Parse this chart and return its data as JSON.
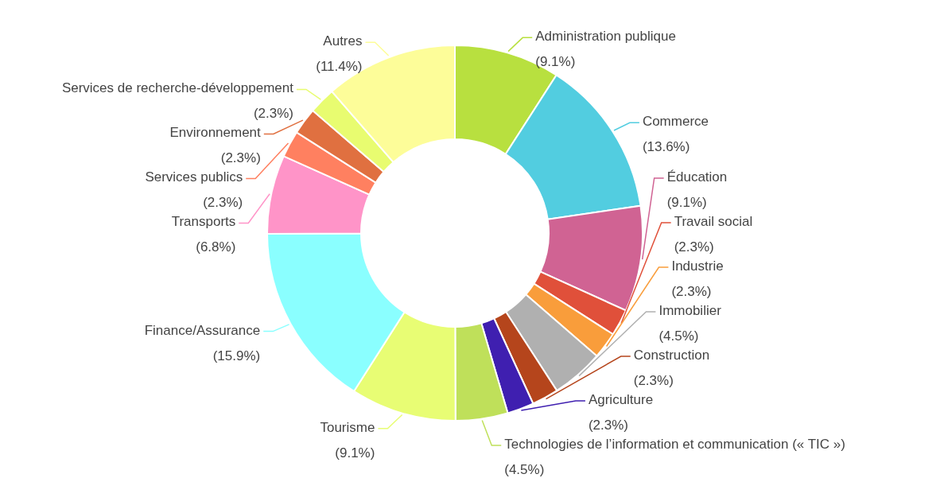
{
  "chart_data": {
    "type": "donut",
    "categories": [
      "Administration publique",
      "Commerce",
      "Éducation",
      "Travail social",
      "Industrie",
      "Immobilier",
      "Construction",
      "Agriculture",
      "Technologies de l’information et communication (« TIC »)",
      "Tourisme",
      "Finance/Assurance",
      "Transports",
      "Services publics",
      "Environnement",
      "Services de recherche-développement",
      "Autres"
    ],
    "values": [
      9.1,
      13.6,
      9.1,
      2.3,
      2.3,
      4.5,
      2.3,
      2.3,
      4.5,
      9.1,
      15.9,
      6.8,
      2.3,
      2.3,
      2.3,
      11.4
    ],
    "colors": [
      "#b8e03f",
      "#52cde0",
      "#d06393",
      "#e0503a",
      "#f99d3b",
      "#b0b0b0",
      "#b5451c",
      "#3f1fb0",
      "#bfe05a",
      "#e8fd74",
      "#8affff",
      "#ff94c8",
      "#ff8060",
      "#e07040",
      "#e8fc70",
      "#fdfd99"
    ],
    "value_labels": [
      "(9.1%)",
      "(13.6%)",
      "(9.1%)",
      "(2.3%)",
      "(2.3%)",
      "(4.5%)",
      "(2.3%)",
      "(2.3%)",
      "(4.5%)",
      "(9.1%)",
      "(15.9%)",
      "(6.8%)",
      "(2.3%)",
      "(2.3%)",
      "(2.3%)",
      "(11.4%)"
    ]
  }
}
